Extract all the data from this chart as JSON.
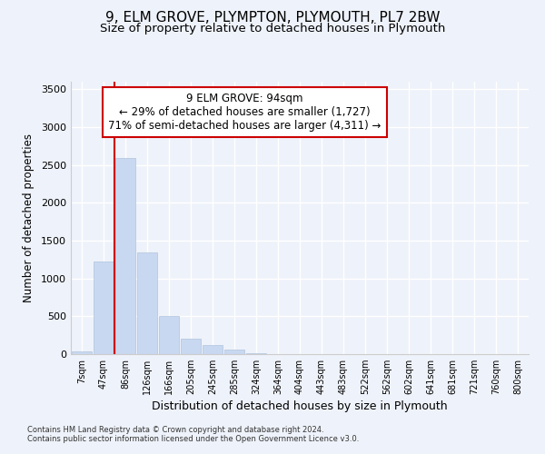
{
  "title1": "9, ELM GROVE, PLYMPTON, PLYMOUTH, PL7 2BW",
  "title2": "Size of property relative to detached houses in Plymouth",
  "xlabel": "Distribution of detached houses by size in Plymouth",
  "ylabel": "Number of detached properties",
  "categories": [
    "7sqm",
    "47sqm",
    "86sqm",
    "126sqm",
    "166sqm",
    "205sqm",
    "245sqm",
    "285sqm",
    "324sqm",
    "364sqm",
    "404sqm",
    "443sqm",
    "483sqm",
    "522sqm",
    "562sqm",
    "602sqm",
    "641sqm",
    "681sqm",
    "721sqm",
    "760sqm",
    "800sqm"
  ],
  "values": [
    40,
    1220,
    2590,
    1340,
    500,
    200,
    120,
    55,
    15,
    5,
    2,
    1,
    1,
    0,
    0,
    0,
    0,
    0,
    0,
    0,
    0
  ],
  "bar_color": "#c8d8f0",
  "bar_edge_color": "#b0c4de",
  "vline_x": 1.5,
  "vline_color": "#cc0000",
  "annotation_text": "9 ELM GROVE: 94sqm\n← 29% of detached houses are smaller (1,727)\n71% of semi-detached houses are larger (4,311) →",
  "annotation_box_color": "#ffffff",
  "annotation_box_edge": "#cc0000",
  "ylim": [
    0,
    3600
  ],
  "yticks": [
    0,
    500,
    1000,
    1500,
    2000,
    2500,
    3000,
    3500
  ],
  "footer1": "Contains HM Land Registry data © Crown copyright and database right 2024.",
  "footer2": "Contains public sector information licensed under the Open Government Licence v3.0.",
  "bg_color": "#eef2fa",
  "grid_color": "#ffffff",
  "title1_fontsize": 11,
  "title2_fontsize": 9.5,
  "annot_fontsize": 8.5
}
